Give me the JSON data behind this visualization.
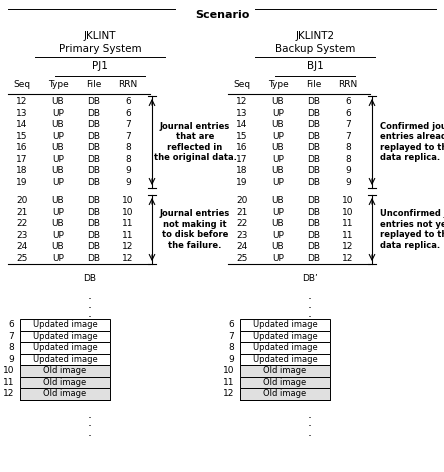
{
  "title": "Scenario",
  "left_system_line1": "JKLINT",
  "left_system_line2": "Primary System",
  "right_system_line1": "JKLINT2",
  "right_system_line2": "Backup System",
  "left_journal": "PJ1",
  "right_journal": "BJ1",
  "headers": [
    "Seq",
    "Type",
    "File",
    "RRN"
  ],
  "rows": [
    [
      12,
      "UB",
      "DB",
      6
    ],
    [
      13,
      "UP",
      "DB",
      6
    ],
    [
      14,
      "UB",
      "DB",
      7
    ],
    [
      15,
      "UP",
      "DB",
      7
    ],
    [
      16,
      "UB",
      "DB",
      8
    ],
    [
      17,
      "UP",
      "DB",
      8
    ],
    [
      18,
      "UB",
      "DB",
      9
    ],
    [
      19,
      "UP",
      "DB",
      9
    ],
    [
      20,
      "UB",
      "DB",
      10
    ],
    [
      21,
      "UP",
      "DB",
      10
    ],
    [
      22,
      "UB",
      "DB",
      11
    ],
    [
      23,
      "UP",
      "DB",
      11
    ],
    [
      24,
      "UB",
      "DB",
      12
    ],
    [
      25,
      "UP",
      "DB",
      12
    ]
  ],
  "left_annotation1": "Journal entries\nthat are\nreflected in\nthe original data.",
  "left_annotation2": "Journal entries\nnot making it\nto disk before\nthe failure.",
  "right_annotation1": "Confirmed journal\nentries already\nreplayed to the\ndata replica.",
  "right_annotation2": "Unconfirmed journal\nentries not yet\nreplayed to the\ndata replica.",
  "left_db_label": "DB",
  "right_db_label": "DB’",
  "db_row_labels": [
    6,
    7,
    8,
    9,
    10,
    11,
    12
  ],
  "db_updated_label": "Updated image",
  "db_old_label": "Old image",
  "background_color": "#ffffff",
  "text_color": "#000000"
}
